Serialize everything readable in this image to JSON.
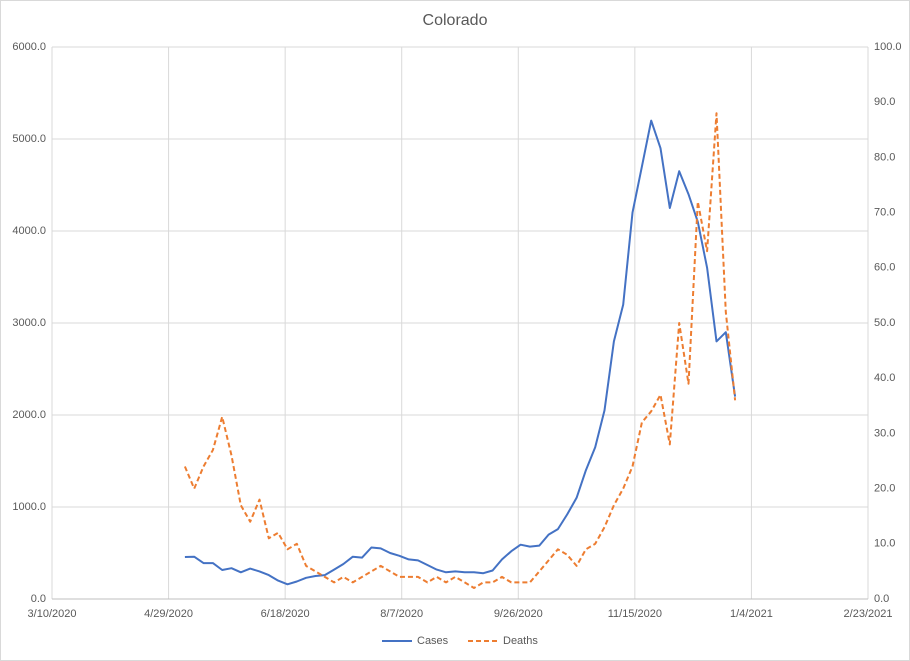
{
  "chart_data": {
    "type": "line",
    "title": "Colorado",
    "x": [
      "5/6/2020",
      "5/10/2020",
      "5/14/2020",
      "5/18/2020",
      "5/22/2020",
      "5/26/2020",
      "5/30/2020",
      "6/3/2020",
      "6/7/2020",
      "6/11/2020",
      "6/15/2020",
      "6/19/2020",
      "6/23/2020",
      "6/27/2020",
      "7/1/2020",
      "7/5/2020",
      "7/9/2020",
      "7/13/2020",
      "7/17/2020",
      "7/21/2020",
      "7/25/2020",
      "7/29/2020",
      "8/2/2020",
      "8/6/2020",
      "8/10/2020",
      "8/14/2020",
      "8/18/2020",
      "8/22/2020",
      "8/26/2020",
      "8/30/2020",
      "9/3/2020",
      "9/7/2020",
      "9/11/2020",
      "9/15/2020",
      "9/19/2020",
      "9/23/2020",
      "9/27/2020",
      "10/1/2020",
      "10/5/2020",
      "10/9/2020",
      "10/13/2020",
      "10/17/2020",
      "10/21/2020",
      "10/25/2020",
      "10/29/2020",
      "11/2/2020",
      "11/6/2020",
      "11/10/2020",
      "11/14/2020",
      "11/18/2020",
      "11/22/2020",
      "11/26/2020",
      "11/30/2020",
      "12/4/2020",
      "12/8/2020",
      "12/12/2020",
      "12/16/2020",
      "12/20/2020",
      "12/24/2020",
      "12/28/2020"
    ],
    "series": [
      {
        "name": "Cases",
        "color": "#4472c4",
        "dash": false,
        "values": [
          456,
          460,
          390,
          390,
          315,
          335,
          290,
          330,
          300,
          260,
          200,
          160,
          190,
          230,
          250,
          260,
          320,
          380,
          460,
          450,
          560,
          550,
          500,
          470,
          430,
          420,
          370,
          320,
          290,
          300,
          290,
          290,
          280,
          310,
          430,
          520,
          590,
          570,
          580,
          700,
          760,
          920,
          1100,
          1400,
          1650,
          2050,
          2800,
          3200,
          4200,
          4700,
          5200,
          4900,
          4250,
          4650,
          4400,
          4100,
          3600,
          2800,
          2900,
          2200
        ]
      },
      {
        "name": "Deaths",
        "color": "#ed7d31",
        "dash": true,
        "axis": "y2",
        "values": [
          24,
          20,
          24,
          27,
          33,
          26,
          17,
          14,
          18,
          11,
          12,
          9,
          10,
          6,
          5,
          4,
          3,
          4,
          3,
          4,
          5,
          6,
          5,
          4,
          4,
          4,
          3,
          4,
          3,
          4,
          3,
          2,
          3,
          3,
          4,
          3,
          3,
          3,
          5,
          7,
          9,
          8,
          6,
          9,
          10,
          13,
          17,
          20,
          24,
          32,
          34,
          37,
          28,
          50,
          39,
          72,
          63,
          88,
          52,
          36
        ]
      }
    ],
    "xlim": [
      "3/10/2020",
      "2/23/2021"
    ],
    "xticks": [
      "3/10/2020",
      "4/29/2020",
      "6/18/2020",
      "8/7/2020",
      "9/26/2020",
      "11/15/2020",
      "1/4/2021",
      "2/23/2021"
    ],
    "ylim": [
      0,
      6000
    ],
    "yticks": [
      {
        "value": 0,
        "label": "0.0"
      },
      {
        "value": 1000,
        "label": "1000.0"
      },
      {
        "value": 2000,
        "label": "2000.0"
      },
      {
        "value": 3000,
        "label": "3000.0"
      },
      {
        "value": 4000,
        "label": "4000.0"
      },
      {
        "value": 5000,
        "label": "5000.0"
      },
      {
        "value": 6000,
        "label": "6000.0"
      }
    ],
    "y2lim": [
      0,
      100
    ],
    "y2ticks": [
      {
        "value": 0,
        "label": "0.0"
      },
      {
        "value": 10,
        "label": "10.0"
      },
      {
        "value": 20,
        "label": "20.0"
      },
      {
        "value": 30,
        "label": "30.0"
      },
      {
        "value": 40,
        "label": "40.0"
      },
      {
        "value": 50,
        "label": "50.0"
      },
      {
        "value": 60,
        "label": "60.0"
      },
      {
        "value": 70,
        "label": "70.0"
      },
      {
        "value": 80,
        "label": "80.0"
      },
      {
        "value": 90,
        "label": "90.0"
      },
      {
        "value": 100,
        "label": "100.0"
      }
    ],
    "grid": true,
    "legend": "bottom"
  }
}
